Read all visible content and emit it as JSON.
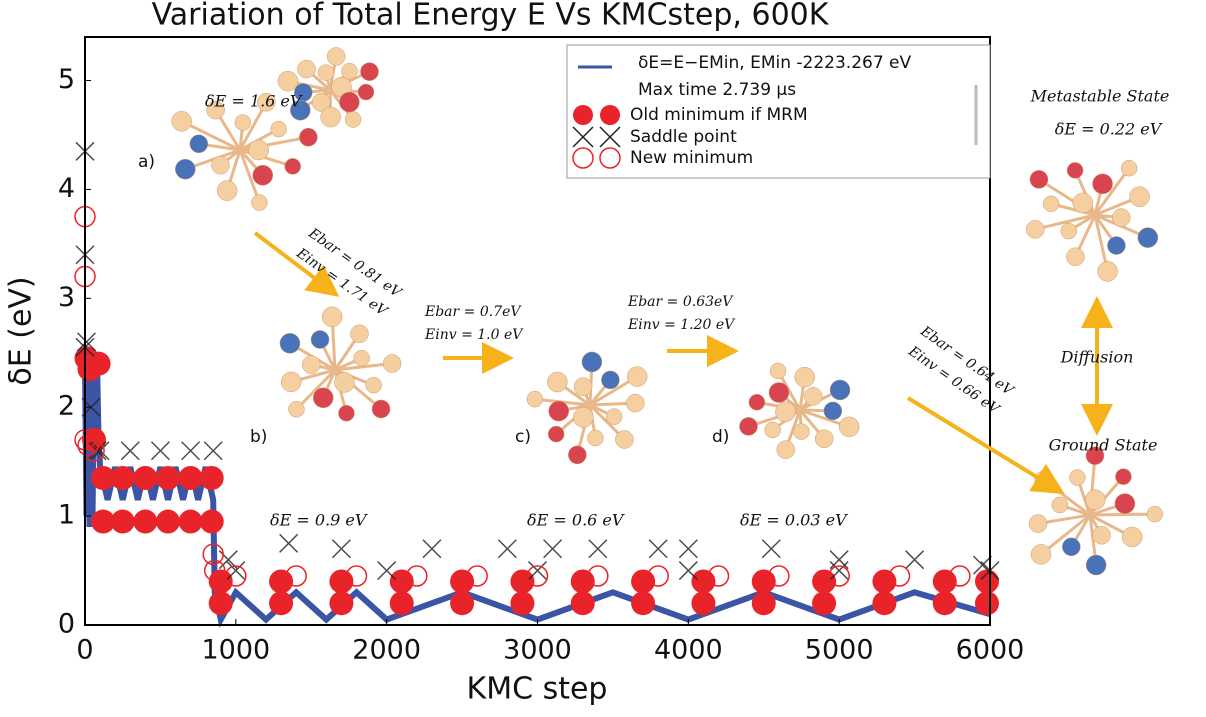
{
  "chart_data": {
    "type": "scatter",
    "title": "Variation of Total Energy E Vs KMCstep, 600K",
    "x_label": "KMC step",
    "y_label": "δE (eV)",
    "xlim": [
      0,
      6000
    ],
    "ylim": [
      0,
      5.4
    ],
    "xticks": [
      0,
      1000,
      2000,
      3000,
      4000,
      5000,
      6000
    ],
    "yticks": [
      0,
      1,
      2,
      3,
      4,
      5
    ],
    "legend_note": "Max time  2.739 μs",
    "series": [
      {
        "name": "δE=E−EMin,  EMin -2223.267 eV",
        "kind": "line",
        "color": "#3b54a5",
        "x": [
          0,
          10,
          20,
          30,
          40,
          50,
          60,
          70,
          80,
          90,
          100,
          150,
          200,
          250,
          300,
          350,
          400,
          450,
          500,
          550,
          600,
          650,
          700,
          750,
          800,
          850,
          860,
          900,
          1000,
          1200,
          1400,
          1600,
          1800,
          2000,
          2500,
          3000,
          3500,
          4000,
          4500,
          5000,
          5500,
          6000
        ],
        "values": [
          2.4,
          1.0,
          2.3,
          0.9,
          2.5,
          1.0,
          2.3,
          1.6,
          2.4,
          1.7,
          1.45,
          1.15,
          1.45,
          1.15,
          1.45,
          1.15,
          1.45,
          1.15,
          1.45,
          1.15,
          1.45,
          1.15,
          1.45,
          1.15,
          1.45,
          1.15,
          0.3,
          0.05,
          0.3,
          0.05,
          0.3,
          0.05,
          0.3,
          0.05,
          0.3,
          0.05,
          0.3,
          0.05,
          0.3,
          0.05,
          0.3,
          0.1
        ]
      },
      {
        "name": "Old minimum if MRM",
        "kind": "filled-circle",
        "color": "#e8242a",
        "x": [
          10,
          30,
          60,
          90,
          120,
          250,
          400,
          550,
          700,
          840,
          120,
          250,
          400,
          550,
          700,
          840,
          900,
          1300,
          1700,
          2100,
          2500,
          2900,
          3300,
          3700,
          4100,
          4500,
          4900,
          5300,
          5700,
          5980,
          900,
          1300,
          1700,
          2100,
          2500,
          2900,
          3300,
          3700,
          4100,
          4500,
          4900,
          5300,
          5700,
          5980
        ],
        "values": [
          2.45,
          2.35,
          1.7,
          2.4,
          1.35,
          1.35,
          1.35,
          1.35,
          1.35,
          1.35,
          0.95,
          0.95,
          0.95,
          0.95,
          0.95,
          0.95,
          0.4,
          0.4,
          0.4,
          0.4,
          0.4,
          0.4,
          0.4,
          0.4,
          0.4,
          0.4,
          0.4,
          0.4,
          0.4,
          0.4,
          0.2,
          0.2,
          0.2,
          0.2,
          0.2,
          0.2,
          0.2,
          0.2,
          0.2,
          0.2,
          0.2,
          0.2,
          0.2,
          0.2
        ]
      },
      {
        "name": "Saddle point",
        "kind": "cross",
        "color": "#222222",
        "x": [
          0,
          0,
          0,
          10,
          40,
          80,
          100,
          300,
          500,
          700,
          850,
          950,
          1350,
          1700,
          2300,
          2800,
          3100,
          3400,
          3800,
          4000,
          4550,
          5000,
          5500,
          5950,
          1000,
          2000,
          3000,
          4000,
          5000,
          6000
        ],
        "values": [
          4.35,
          3.4,
          2.55,
          2.6,
          2.0,
          1.6,
          1.6,
          1.6,
          1.6,
          1.6,
          1.6,
          0.6,
          0.75,
          0.7,
          0.7,
          0.7,
          0.7,
          0.7,
          0.7,
          0.7,
          0.7,
          0.6,
          0.6,
          0.55,
          0.5,
          0.5,
          0.5,
          0.5,
          0.5,
          0.5
        ]
      },
      {
        "name": "New minimum",
        "kind": "hollow-circle",
        "color": "#e8242a",
        "x": [
          0,
          0,
          0,
          20,
          60,
          850,
          860,
          1000,
          1400,
          1800,
          2200,
          2600,
          3000,
          3400,
          3800,
          4200,
          4600,
          5000,
          5400,
          5800
        ],
        "values": [
          3.75,
          3.2,
          1.7,
          1.65,
          1.6,
          0.65,
          0.5,
          0.45,
          0.45,
          0.45,
          0.45,
          0.45,
          0.45,
          0.45,
          0.45,
          0.45,
          0.45,
          0.45,
          0.45,
          0.45
        ]
      }
    ],
    "annotations": [
      "δE = 1.6 eV",
      "a)",
      "Ebar = 0.81 eV",
      "Einv = 1.71 eV",
      "b)",
      "Ebar = 0.7eV",
      "Einv = 1.0 eV",
      "c)",
      "Ebar = 0.63eV",
      "Einv = 1.20 eV",
      "d)",
      "Ebar = 0.64 eV",
      "Einv = 0.66 eV",
      "δE = 0.9 eV",
      "δE = 0.6 eV",
      "δE = 0.03 eV",
      "Metastable State",
      "δE = 0.22 eV",
      "Diffusion",
      "Ground State"
    ]
  }
}
